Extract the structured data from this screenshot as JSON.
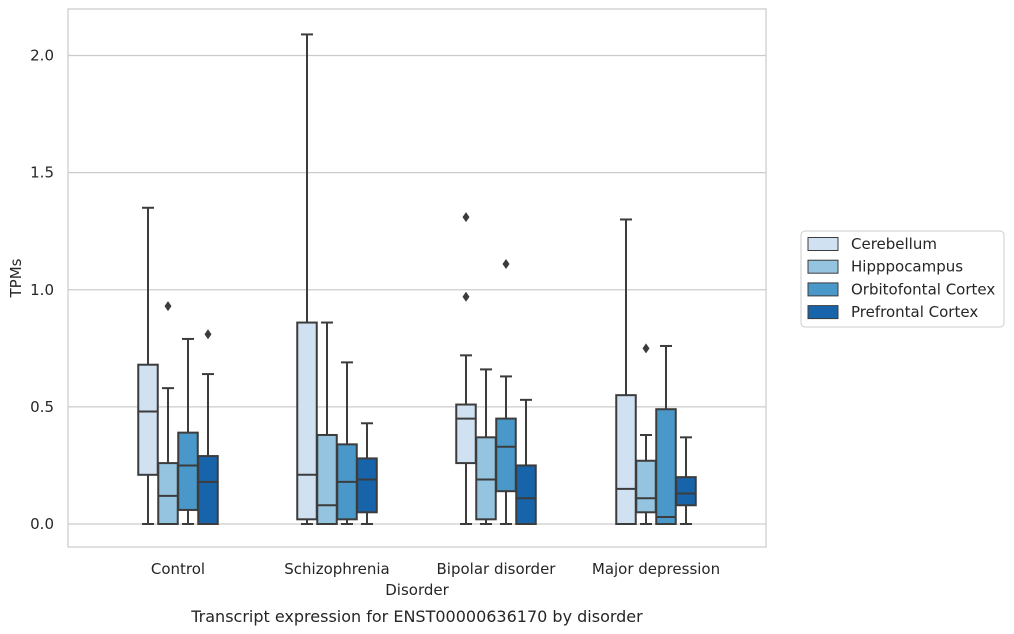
{
  "chart_data": {
    "type": "box",
    "title": "",
    "caption": "Transcript expression for ENST00000636170 by disorder",
    "xlabel": "Disorder",
    "ylabel": "TPMs",
    "ylim": [
      -0.1,
      2.2
    ],
    "yticks": [
      0.0,
      0.5,
      1.0,
      1.5,
      2.0
    ],
    "ytick_labels": [
      "0.0",
      "0.5",
      "1.0",
      "1.5",
      "2.0"
    ],
    "grid": "horizontal",
    "legend_position": "right",
    "categories": [
      "Control",
      "Schizophrenia",
      "Bipolar disorder",
      "Major depression"
    ],
    "series": [
      {
        "name": "Cerebellum",
        "color": "#d0e1f2",
        "boxes": [
          {
            "whisker_low": 0.0,
            "q1": 0.21,
            "median": 0.48,
            "q3": 0.68,
            "whisker_high": 1.35,
            "outliers": []
          },
          {
            "whisker_low": 0.0,
            "q1": 0.02,
            "median": 0.21,
            "q3": 0.86,
            "whisker_high": 2.09,
            "outliers": []
          },
          {
            "whisker_low": 0.0,
            "q1": 0.26,
            "median": 0.45,
            "q3": 0.51,
            "whisker_high": 0.72,
            "outliers": [
              0.97,
              1.31
            ]
          },
          {
            "whisker_low": 0.0,
            "q1": 0.0,
            "median": 0.15,
            "q3": 0.55,
            "whisker_high": 1.3,
            "outliers": []
          }
        ]
      },
      {
        "name": "Hipppocampus",
        "color": "#94c4df",
        "boxes": [
          {
            "whisker_low": 0.0,
            "q1": 0.0,
            "median": 0.12,
            "q3": 0.26,
            "whisker_high": 0.58,
            "outliers": [
              0.93
            ]
          },
          {
            "whisker_low": 0.0,
            "q1": 0.0,
            "median": 0.08,
            "q3": 0.38,
            "whisker_high": 0.86,
            "outliers": []
          },
          {
            "whisker_low": 0.0,
            "q1": 0.02,
            "median": 0.19,
            "q3": 0.37,
            "whisker_high": 0.66,
            "outliers": []
          },
          {
            "whisker_low": 0.0,
            "q1": 0.05,
            "median": 0.11,
            "q3": 0.27,
            "whisker_high": 0.38,
            "outliers": [
              0.75
            ]
          }
        ]
      },
      {
        "name": "Orbitofontal Cortex",
        "color": "#4a98c9",
        "boxes": [
          {
            "whisker_low": 0.0,
            "q1": 0.06,
            "median": 0.25,
            "q3": 0.39,
            "whisker_high": 0.79,
            "outliers": []
          },
          {
            "whisker_low": 0.0,
            "q1": 0.02,
            "median": 0.18,
            "q3": 0.34,
            "whisker_high": 0.69,
            "outliers": []
          },
          {
            "whisker_low": 0.0,
            "q1": 0.14,
            "median": 0.33,
            "q3": 0.45,
            "whisker_high": 0.63,
            "outliers": [
              1.11
            ]
          },
          {
            "whisker_low": 0.0,
            "q1": 0.0,
            "median": 0.03,
            "q3": 0.49,
            "whisker_high": 0.76,
            "outliers": []
          }
        ]
      },
      {
        "name": "Prefrontal Cortex",
        "color": "#1764ab",
        "boxes": [
          {
            "whisker_low": 0.0,
            "q1": 0.0,
            "median": 0.18,
            "q3": 0.29,
            "whisker_high": 0.64,
            "outliers": [
              0.81
            ]
          },
          {
            "whisker_low": 0.0,
            "q1": 0.05,
            "median": 0.19,
            "q3": 0.28,
            "whisker_high": 0.43,
            "outliers": []
          },
          {
            "whisker_low": 0.0,
            "q1": 0.0,
            "median": 0.11,
            "q3": 0.25,
            "whisker_high": 0.53,
            "outliers": []
          },
          {
            "whisker_low": 0.0,
            "q1": 0.08,
            "median": 0.13,
            "q3": 0.2,
            "whisker_high": 0.37,
            "outliers": []
          }
        ]
      }
    ]
  }
}
